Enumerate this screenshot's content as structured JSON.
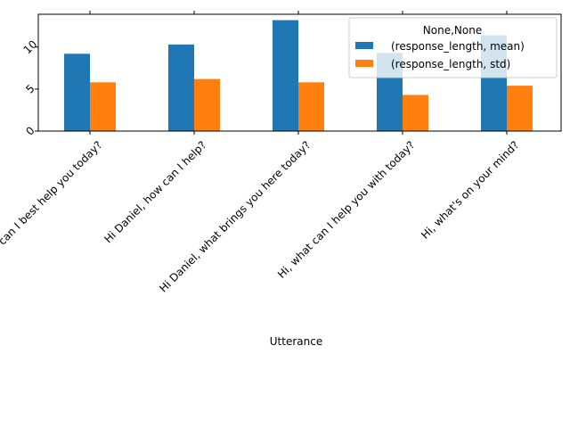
{
  "chart_data": {
    "type": "bar",
    "title": "",
    "xlabel": "Utterance",
    "ylabel": "",
    "categories": [
      "Hi Daniel, how can I best help you today?",
      "Hi Daniel, how can I help?",
      "Hi Daniel, what brings you here today?",
      "Hi, what can I help you with today?",
      "Hi, what's on your mind?"
    ],
    "series": [
      {
        "name": "(response_length, mean)",
        "color": "#1f77b4",
        "values": [
          9.2,
          10.3,
          13.2,
          9.3,
          11.4
        ]
      },
      {
        "name": "(response_length, std)",
        "color": "#ff7f0e",
        "values": [
          5.8,
          6.2,
          5.8,
          4.3,
          5.4
        ]
      }
    ],
    "ylim": [
      0,
      13.9
    ],
    "yticks": [
      0,
      5,
      10
    ],
    "ytick_labels": [
      "0",
      "5",
      "10"
    ],
    "legend": {
      "title": "None,None",
      "placement": "top-right"
    },
    "grid": false
  }
}
